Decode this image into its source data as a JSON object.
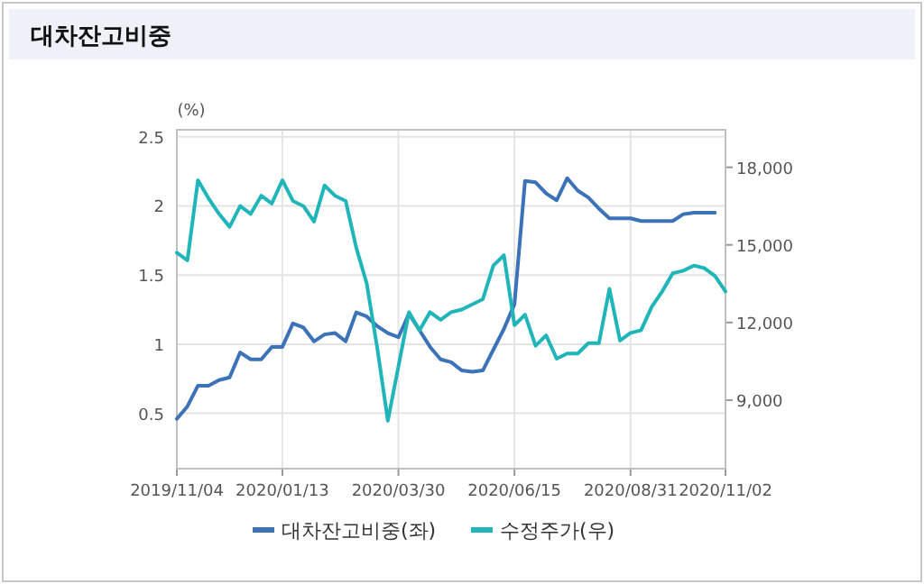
{
  "chart_data": {
    "type": "line",
    "title": "대차잔고비중",
    "ylabel": "(%)",
    "x": [
      "2019-11-04",
      "2019-11-11",
      "2019-11-18",
      "2019-11-25",
      "2019-12-02",
      "2019-12-09",
      "2019-12-16",
      "2019-12-23",
      "2019-12-30",
      "2020-01-06",
      "2020-01-13",
      "2020-01-20",
      "2020-01-27",
      "2020-02-03",
      "2020-02-10",
      "2020-02-17",
      "2020-02-24",
      "2020-03-02",
      "2020-03-09",
      "2020-03-16",
      "2020-03-23",
      "2020-03-30",
      "2020-04-06",
      "2020-04-13",
      "2020-04-20",
      "2020-04-27",
      "2020-05-04",
      "2020-05-11",
      "2020-05-18",
      "2020-05-25",
      "2020-06-01",
      "2020-06-08",
      "2020-06-15",
      "2020-06-22",
      "2020-06-29",
      "2020-07-06",
      "2020-07-13",
      "2020-07-20",
      "2020-07-27",
      "2020-08-03",
      "2020-08-10",
      "2020-08-17",
      "2020-08-24",
      "2020-08-31",
      "2020-09-07",
      "2020-09-14",
      "2020-09-21",
      "2020-09-28",
      "2020-10-05",
      "2020-10-12",
      "2020-10-19",
      "2020-10-26",
      "2020-11-02"
    ],
    "series": [
      {
        "name": "대차잔고비중(좌)",
        "color": "#3b72b8",
        "values": [
          0.46,
          0.55,
          0.7,
          0.7,
          0.74,
          0.76,
          0.94,
          0.89,
          0.89,
          0.98,
          0.98,
          1.15,
          1.12,
          1.02,
          1.07,
          1.08,
          1.02,
          1.23,
          1.2,
          1.13,
          1.08,
          1.05,
          1.22,
          1.1,
          0.98,
          0.89,
          0.87,
          0.81,
          0.8,
          0.81,
          0.96,
          1.11,
          1.29,
          2.18,
          2.17,
          2.09,
          2.04,
          2.2,
          2.11,
          2.06,
          1.98,
          1.91,
          1.91,
          1.91,
          1.89,
          1.89,
          1.89,
          1.89,
          1.94,
          1.95,
          1.95,
          1.95,
          null
        ]
      },
      {
        "name": "수정주가(우)",
        "color": "#20b5b8",
        "axis": "y2",
        "values": [
          14700,
          14400,
          17500,
          16800,
          16200,
          15700,
          16500,
          16200,
          16900,
          16600,
          17500,
          16700,
          16500,
          15900,
          17300,
          16900,
          16700,
          14900,
          13500,
          11000,
          8200,
          10300,
          12400,
          11700,
          12400,
          12100,
          12400,
          12500,
          12700,
          12900,
          14200,
          14600,
          11900,
          12300,
          11100,
          11500,
          10600,
          10800,
          10800,
          11200,
          11200,
          13300,
          11300,
          11600,
          11700,
          12600,
          13200,
          13900,
          14000,
          14200,
          14100,
          13800,
          13200
        ]
      }
    ],
    "xlim": [
      "2019-11-04",
      "2020-11-02"
    ],
    "xticks": [
      {
        "value": "2019-11-04",
        "label": "2019/11/04"
      },
      {
        "value": "2020-01-13",
        "label": "2020/01/13"
      },
      {
        "value": "2020-03-30",
        "label": "2020/03/30"
      },
      {
        "value": "2020-06-15",
        "label": "2020/06/15"
      },
      {
        "value": "2020-08-31",
        "label": "2020/08/31"
      },
      {
        "value": "2020-11-02",
        "label": "2020/11/02"
      }
    ],
    "ylim": [
      0.1,
      2.55
    ],
    "yticks": [
      0.5,
      1,
      1.5,
      2,
      2.5
    ],
    "y2lim": [
      6350,
      19450
    ],
    "y2ticks": [
      {
        "value": 9000,
        "label": "9,000"
      },
      {
        "value": 12000,
        "label": "12,000"
      },
      {
        "value": 15000,
        "label": "15,000"
      },
      {
        "value": 18000,
        "label": "18,000"
      }
    ],
    "grid": true,
    "legend": "bottom",
    "marker": "none",
    "line_style": "solid"
  }
}
